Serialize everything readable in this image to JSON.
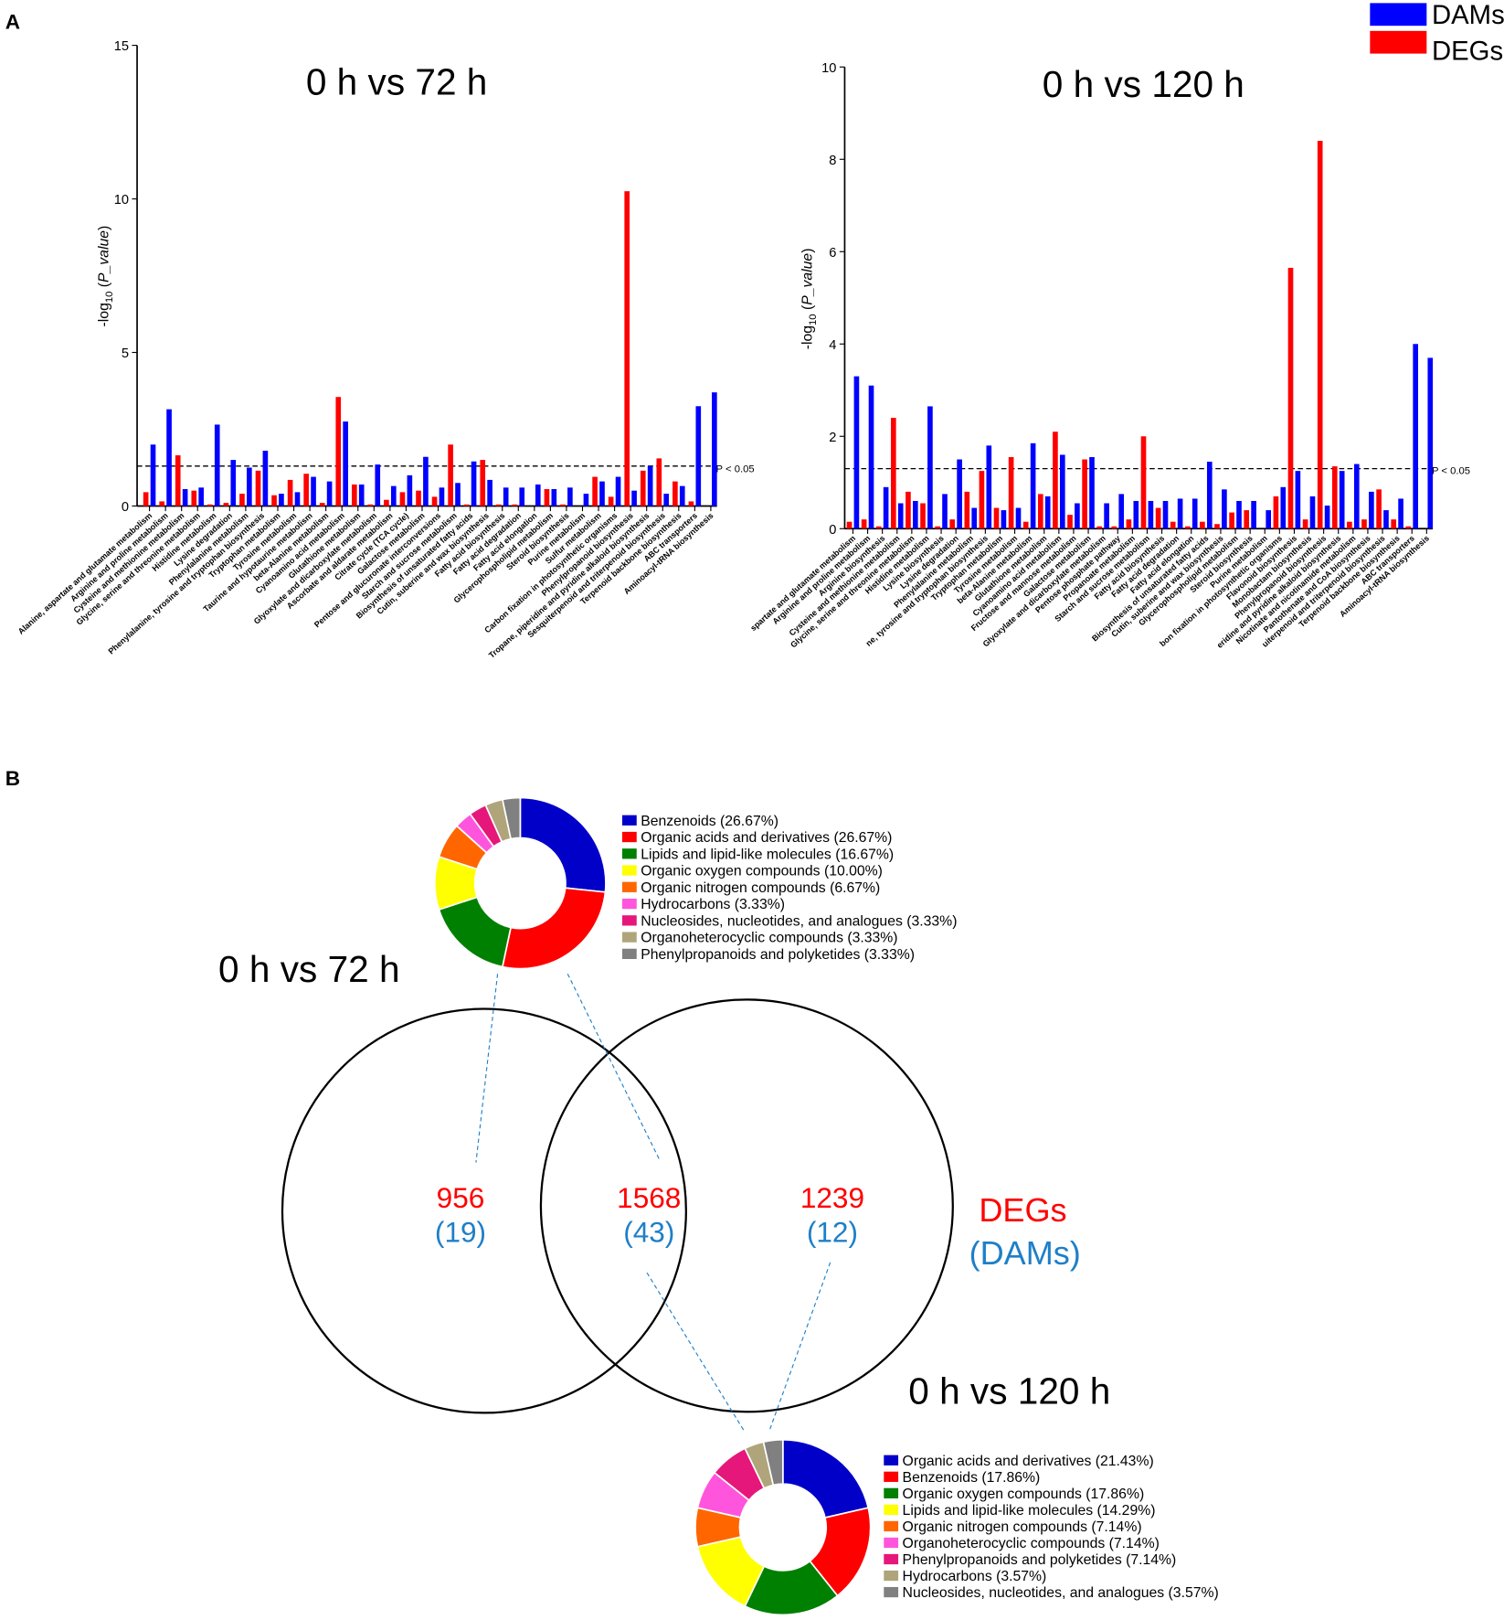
{
  "panels": {
    "a": "A",
    "b": "B"
  },
  "legend": {
    "dams": "DAMs",
    "degs": "DEGs",
    "dams_color": "#0000ff",
    "degs_color": "#ff0000"
  },
  "threshold_label": "P < 0.05",
  "ylabel": {
    "prefix": "-log",
    "sub": "10",
    "var": "P_value"
  },
  "chart_data": [
    {
      "type": "bar",
      "title": "0 h vs 72 h",
      "ylabel": "-log10 (P_value)",
      "ylim": [
        0,
        15
      ],
      "yticks": [
        0,
        5,
        10,
        15
      ],
      "threshold": 1.3,
      "categories": [
        "Alanine, aspartate and glutamate metabolism",
        "Arginine and proline metabolism",
        "Cysteine and methionine metabolism",
        "Glycine, serine and threonine metabolism",
        "Histidine metabolism",
        "Lysine degradation",
        "Phenylalanine metabolism",
        "Phenylalanine, tyrosine and tryptophan biosynthesis",
        "Tryptophan metabolism",
        "Tyrosine metabolism",
        "Taurine and hypotaurine metabolism",
        "beta-Alanine metabolism",
        "Cyanoamino acid metabolism",
        "Glutathione metabolism",
        "Glyoxylate and dicarboxylate metabolism",
        "Ascorbate and aldarate metabolism",
        "Citrate cycle (TCA cycle)",
        "Galactose metabolism",
        "Pentose and glucuronate interconversions",
        "Starch and sucrose metabolism",
        "Biosynthesis of unsaturated fatty acids",
        "Cutin, suberine and wax biosynthesis",
        "Fatty acid biosynthesis",
        "Fatty acid degradation",
        "Fatty acid elongation",
        "Glycerophospholipid metabolism",
        "Steroid biosynthesis",
        "Purine metabolism",
        "Sulfur metabolism",
        "Carbon fixation in photosynthetic organisms",
        "Phenylpropanoid biosynthesis",
        "Tropane, piperidine and pyridine alkaloid biosynthesis",
        "Sesquiterpenoid and triterpenoid biosynthesis",
        "Terpenoid backbone biosynthesis",
        "ABC transporters",
        "Aminoacyl-tRNA biosynthesis"
      ],
      "series": [
        {
          "name": "DEGs",
          "values": [
            0.45,
            0.15,
            1.65,
            0.5,
            0.05,
            0.1,
            0.4,
            1.15,
            0.35,
            0.85,
            1.05,
            0.1,
            3.55,
            0.7,
            0.05,
            0.2,
            0.45,
            0.5,
            0.3,
            2.0,
            0.05,
            1.5,
            0.05,
            0.05,
            0,
            0.55,
            0.05,
            0,
            0.95,
            0.3,
            10.25,
            1.15,
            1.55,
            0.8,
            0.15,
            0
          ]
        },
        {
          "name": "DAMs",
          "values": [
            2.0,
            3.15,
            0.55,
            0.6,
            2.65,
            1.5,
            1.25,
            1.8,
            0.4,
            0.45,
            0.95,
            0.8,
            2.75,
            0.7,
            1.35,
            0.65,
            1.0,
            1.6,
            0.6,
            0.75,
            1.45,
            0.85,
            0.6,
            0.6,
            0.7,
            0.55,
            0.6,
            0.4,
            0.8,
            0.95,
            0.5,
            1.3,
            0.4,
            0.65,
            3.25,
            3.7
          ]
        }
      ]
    },
    {
      "type": "bar",
      "title": "0 h vs 120 h",
      "ylabel": "-log10 (P_value)",
      "ylim": [
        0,
        10
      ],
      "yticks": [
        0,
        2,
        4,
        6,
        8,
        10
      ],
      "threshold": 1.3,
      "categories": [
        "spartate and glutamate metabolism",
        "Arginine and proline metabolism",
        "Arginine biosynthesis",
        "Cysteine and methionine metabolism",
        "Glycine, serine and threonine metabolism",
        "Histidine metabolism",
        "Lysine biosynthesis",
        "Lysine degradation",
        "Phenylalanine metabolism",
        "ne, tyrosine and tryptophan biosynthesis",
        "Tryptophan metabolism",
        "Tyrosine metabolism",
        "beta-Alanine metabolism",
        "Glutathione metabolism",
        "Cyanoamino acid metabolism",
        "Fructose and mannose metabolism",
        "Galactose metabolism",
        "Glyoxylate and dicarboxylate metabolism",
        "Pentose phosphate pathway",
        "Propanoate metabolism",
        "Starch and sucrose metabolism",
        "Fatty acid biosynthesis",
        "Fatty acid degradation",
        "Fatty acid elongation",
        "Biosynthesis of unsaturated fatty acids",
        "Cutin, suberine and wax biosynthesis",
        "Glycerophospholipid metabolism",
        "Steroid biosynthesis",
        "Purine metabolism",
        "bon fixation in photosynthetic organisms",
        "Flavonoid biosynthesis",
        "Monobactam biosynthesis",
        "Phenylpropanoid biosynthesis",
        "eridine and pyridine alkaloid biosynthesis",
        "Nicotinate and nicotinamide metabolism",
        "Pantothenate and CoA biosynthesis",
        "uiterpenoid and triterpenoid biosynthesis",
        "Terpenoid backbone biosynthesis",
        "ABC transporters",
        "Aminoacyl-tRNA biosynthesis"
      ],
      "series": [
        {
          "name": "DEGs",
          "values": [
            0.15,
            0.2,
            0.05,
            2.4,
            0.8,
            0.55,
            0.05,
            0.2,
            0.8,
            1.25,
            0.45,
            1.55,
            0.15,
            0.75,
            2.1,
            0.3,
            1.5,
            0.05,
            0.05,
            0.2,
            2.0,
            0.45,
            0.15,
            0.05,
            0.15,
            0.1,
            0.35,
            0.4,
            0,
            0.7,
            5.65,
            0.2,
            8.4,
            1.35,
            0.15,
            0.2,
            0.85,
            0.2,
            0.05,
            0
          ]
        },
        {
          "name": "DAMs",
          "values": [
            3.3,
            3.1,
            0.9,
            0.55,
            0.6,
            2.65,
            0.75,
            1.5,
            0.45,
            1.8,
            0.4,
            0.45,
            1.85,
            0.7,
            1.6,
            0.55,
            1.55,
            0.55,
            0.75,
            0.6,
            0.6,
            0.6,
            0.65,
            0.65,
            1.45,
            0.85,
            0.6,
            0.6,
            0.4,
            0.9,
            1.25,
            0.7,
            0.5,
            1.25,
            1.4,
            0.8,
            0.4,
            0.65,
            4.0,
            3.7
          ]
        }
      ]
    },
    {
      "type": "pie",
      "title": "0 h vs 72 h",
      "labels": [
        "Benzenoids (26.67%)",
        "Organic acids and derivatives (26.67%)",
        "Lipids and lipid-like molecules (16.67%)",
        "Organic oxygen compounds (10.00%)",
        "Organic nitrogen compounds (6.67%)",
        "Hydrocarbons (3.33%)",
        "Nucleosides, nucleotides, and analogues (3.33%)",
        "Organoheterocyclic compounds (3.33%)",
        "Phenylpropanoids and polyketides (3.33%)"
      ],
      "values": [
        26.67,
        26.67,
        16.67,
        10.0,
        6.67,
        3.33,
        3.33,
        3.33,
        3.33
      ]
    },
    {
      "type": "pie",
      "title": "0 h vs 120 h",
      "labels": [
        "Organic acids and derivatives (21.43%)",
        "Benzenoids (17.86%)",
        "Organic oxygen compounds (17.86%)",
        "Lipids and lipid-like molecules (14.29%)",
        "Organic nitrogen compounds (7.14%)",
        "Organoheterocyclic compounds (7.14%)",
        "Phenylpropanoids and polyketides (7.14%)",
        "Hydrocarbons (3.57%)",
        "Nucleosides, nucleotides, and analogues (3.57%)"
      ],
      "values": [
        21.43,
        17.86,
        17.86,
        14.29,
        7.14,
        7.14,
        7.14,
        3.57,
        3.57
      ]
    }
  ],
  "pie_colors": [
    "#0000c8",
    "#ff0000",
    "#008000",
    "#ffff00",
    "#ff6600",
    "#ff55dd",
    "#e6177a",
    "#b0a47a",
    "#808080"
  ],
  "venn": {
    "left": {
      "degs": "956",
      "dams": "(19)"
    },
    "middle": {
      "degs": "1568",
      "dams": "(43)"
    },
    "right": {
      "degs": "1239",
      "dams": "(12)"
    },
    "legend_degs": "DEGs",
    "legend_dams": "(DAMs)",
    "label_72": "0 h vs 72 h",
    "label_120": "0 h vs 120 h",
    "degs_color": "#ff0000",
    "dams_color": "#1e7fc8"
  }
}
